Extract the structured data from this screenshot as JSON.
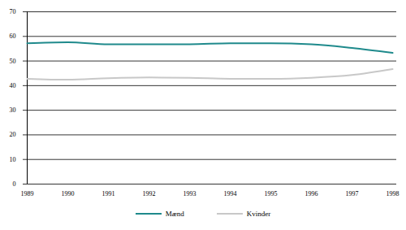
{
  "chart_data": {
    "type": "line",
    "categories": [
      "1989",
      "1990",
      "1991",
      "1992",
      "1993",
      "1994",
      "1995",
      "1996",
      "1997",
      "1998"
    ],
    "series": [
      {
        "name": "Mænd",
        "color": "#1f8a8c",
        "values": [
          57.2,
          57.6,
          56.8,
          56.8,
          56.8,
          57.2,
          57.2,
          56.8,
          55.3,
          53.3
        ]
      },
      {
        "name": "Kvinder",
        "color": "#c8c8c8",
        "values": [
          42.8,
          42.4,
          43.0,
          43.3,
          43.2,
          42.8,
          42.8,
          43.2,
          44.3,
          46.7
        ]
      }
    ],
    "ylim": [
      0,
      70
    ],
    "yticks": [
      0,
      10,
      20,
      30,
      40,
      50,
      60,
      70
    ],
    "grid": true,
    "legend": "bottom"
  }
}
